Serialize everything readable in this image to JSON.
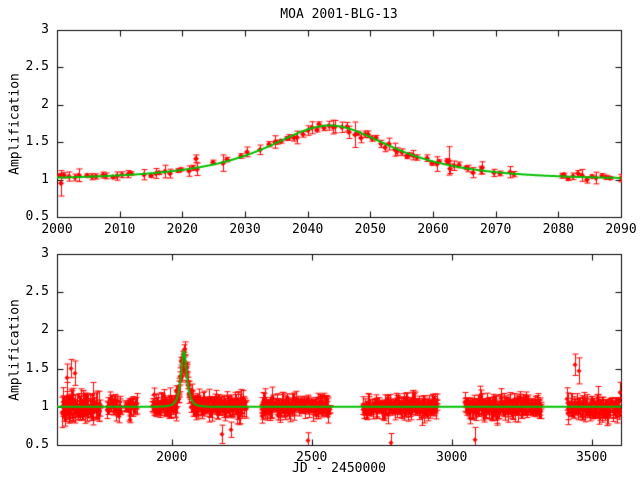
{
  "figure": {
    "title": "MOA 2001-BLG-13",
    "background_color": "#ffffff",
    "axis_color": "#000000",
    "data_color": "#ff0000",
    "model_color": "#00c000"
  },
  "chart_data": [
    {
      "panel": "top",
      "type": "scatter",
      "title": "MOA 2001-BLG-13",
      "xlabel": "",
      "ylabel": "Amplification",
      "xlim": [
        2000,
        2090
      ],
      "ylim": [
        0.5,
        3
      ],
      "x_ticks": [
        2000,
        2010,
        2020,
        2030,
        2040,
        2050,
        2060,
        2070,
        2080,
        2090
      ],
      "x_tick_labels": [
        "2000",
        "2010",
        "2020",
        "2030",
        "2040",
        "2050",
        "2060",
        "2070",
        "2080",
        "2090"
      ],
      "y_ticks": [
        0.5,
        1,
        1.5,
        2,
        2.5,
        3
      ],
      "y_tick_labels": [
        "0.5",
        "1",
        "1.5",
        "2",
        "2.5",
        "3"
      ],
      "grid": false,
      "legend": "none",
      "series": [
        {
          "name": "photometry",
          "style": "points_with_errorbars",
          "marker": "filled-diamond",
          "color": "#ff0000",
          "segments": [
            {
              "t_start": 2000.0,
              "t_end": 2012.5,
              "n": 15,
              "scatter_sigma": 0.018,
              "err_min": 0.02,
              "err_max": 0.09
            },
            {
              "t_start": 2013.5,
              "t_end": 2023.0,
              "n": 11,
              "scatter_sigma": 0.018,
              "err_min": 0.02,
              "err_max": 0.09
            },
            {
              "t_start": 2024.5,
              "t_end": 2033.0,
              "n": 5,
              "scatter_sigma": 0.02,
              "err_min": 0.03,
              "err_max": 0.1
            },
            {
              "t_start": 2033.5,
              "t_end": 2047.0,
              "n": 20,
              "scatter_sigma": 0.018,
              "err_min": 0.025,
              "err_max": 0.1
            },
            {
              "t_start": 2047.5,
              "t_end": 2058.0,
              "n": 16,
              "scatter_sigma": 0.018,
              "err_min": 0.025,
              "err_max": 0.1
            },
            {
              "t_start": 2058.5,
              "t_end": 2068.5,
              "n": 13,
              "scatter_sigma": 0.02,
              "err_min": 0.02,
              "err_max": 0.1
            },
            {
              "t_start": 2069.5,
              "t_end": 2073.5,
              "n": 4,
              "scatter_sigma": 0.02,
              "err_min": 0.03,
              "err_max": 0.1
            },
            {
              "t_start": 2080.0,
              "t_end": 2088.5,
              "n": 12,
              "scatter_sigma": 0.018,
              "err_min": 0.02,
              "err_max": 0.09
            }
          ],
          "outliers": [
            {
              "t": 2000.6,
              "a": 0.95,
              "err": 0.17
            },
            {
              "t": 2022.2,
              "a": 1.28,
              "err": 0.05
            },
            {
              "t": 2026.5,
              "a": 1.22,
              "err": 0.11
            },
            {
              "t": 2047.6,
              "a": 1.6,
              "err": 0.17
            },
            {
              "t": 2062.5,
              "a": 1.25,
              "err": 0.19
            },
            {
              "t": 2090.0,
              "a": 1.02,
              "err": 0.05
            }
          ]
        },
        {
          "name": "microlensing model",
          "style": "line",
          "color": "#00c000",
          "model": {
            "type": "paczynski",
            "t0": 2043.5,
            "u0": 0.675,
            "tE": 17.3,
            "baseline": 1.0,
            "peak_amplification": 1.72
          }
        }
      ]
    },
    {
      "panel": "bottom",
      "type": "scatter",
      "title": "",
      "xlabel": "JD - 2450000",
      "ylabel": "Amplification",
      "xlim": [
        1590,
        3605
      ],
      "ylim": [
        0.5,
        3
      ],
      "x_ticks": [
        2000,
        2500,
        3000,
        3500
      ],
      "x_tick_labels": [
        "2000",
        "2500",
        "3000",
        "3500"
      ],
      "y_ticks": [
        0.5,
        1,
        1.5,
        2,
        2.5,
        3
      ],
      "y_tick_labels": [
        "0.5",
        "1",
        "1.5",
        "2",
        "2.5",
        "3"
      ],
      "grid": false,
      "legend": "none",
      "series": [
        {
          "name": "photometry",
          "style": "points_with_errorbars",
          "marker": "filled-diamond",
          "color": "#ff0000",
          "segments": [
            {
              "t_start": 1608,
              "t_end": 1745,
              "n": 85,
              "scatter_sigma": 0.07,
              "err_min": 0.04,
              "err_max": 0.2
            },
            {
              "t_start": 1768,
              "t_end": 1820,
              "n": 24,
              "scatter_sigma": 0.06,
              "err_min": 0.04,
              "err_max": 0.14
            },
            {
              "t_start": 1832,
              "t_end": 1876,
              "n": 22,
              "scatter_sigma": 0.055,
              "err_min": 0.04,
              "err_max": 0.14
            },
            {
              "t_start": 1930,
              "t_end": 2265,
              "n": 225,
              "scatter_sigma": 0.055,
              "err_min": 0.04,
              "err_max": 0.15
            },
            {
              "t_start": 2320,
              "t_end": 2565,
              "n": 165,
              "scatter_sigma": 0.05,
              "err_min": 0.04,
              "err_max": 0.14
            },
            {
              "t_start": 2682,
              "t_end": 2950,
              "n": 175,
              "scatter_sigma": 0.05,
              "err_min": 0.04,
              "err_max": 0.14
            },
            {
              "t_start": 3046,
              "t_end": 3320,
              "n": 185,
              "scatter_sigma": 0.05,
              "err_min": 0.04,
              "err_max": 0.14
            },
            {
              "t_start": 3413,
              "t_end": 3602,
              "n": 135,
              "scatter_sigma": 0.055,
              "err_min": 0.04,
              "err_max": 0.15
            }
          ],
          "outliers": [
            {
              "t": 1624,
              "a": 1.38,
              "err": 0.18
            },
            {
              "t": 1640,
              "a": 1.5,
              "err": 0.12
            },
            {
              "t": 1655,
              "a": 1.44,
              "err": 0.16
            },
            {
              "t": 2180,
              "a": 0.64,
              "err": 0.12
            },
            {
              "t": 2212,
              "a": 0.7,
              "err": 0.1
            },
            {
              "t": 2487,
              "a": 0.56,
              "err": 0.1
            },
            {
              "t": 2782,
              "a": 0.53,
              "err": 0.12
            },
            {
              "t": 3085,
              "a": 0.57,
              "err": 0.16
            },
            {
              "t": 3440,
              "a": 1.55,
              "err": 0.14
            },
            {
              "t": 3455,
              "a": 1.47,
              "err": 0.17
            }
          ]
        },
        {
          "name": "microlensing model",
          "style": "line",
          "color": "#00c000",
          "model": {
            "type": "paczynski",
            "t0": 2043.5,
            "u0": 0.675,
            "tE": 17.3,
            "baseline": 1.0,
            "peak_amplification": 1.72
          }
        }
      ]
    }
  ]
}
